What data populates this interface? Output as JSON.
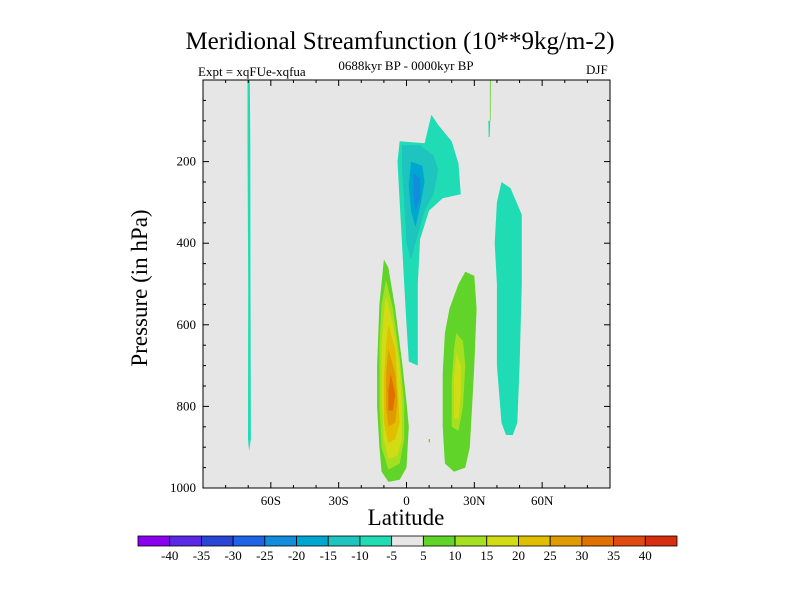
{
  "chart_data": {
    "type": "contour",
    "title": "Meridional Streamfunction (10**9kg/m-2)",
    "subtitle_left": "Expt = xqFUe-xqfua",
    "subtitle_center": "0688kyr BP - 0000kyr BP",
    "subtitle_right": "DJF",
    "xlabel": "Latitude",
    "ylabel": "Pressure (in hPa)",
    "xlim": [
      -90,
      90
    ],
    "ylim": [
      1000,
      0
    ],
    "x_ticks": [
      {
        "value": -60,
        "label": "60S"
      },
      {
        "value": -30,
        "label": "30S"
      },
      {
        "value": 0,
        "label": "0"
      },
      {
        "value": 30,
        "label": "30N"
      },
      {
        "value": 60,
        "label": "60N"
      }
    ],
    "y_ticks": [
      {
        "value": 200,
        "label": "200"
      },
      {
        "value": 400,
        "label": "400"
      },
      {
        "value": 600,
        "label": "600"
      },
      {
        "value": 800,
        "label": "800"
      },
      {
        "value": 1000,
        "label": "1000"
      }
    ],
    "background_color": "#e6e6e6",
    "features": [
      {
        "name": "thin -5 band 70S",
        "level": -5,
        "points": [
          [
            -70.3,
            0
          ],
          [
            -69.3,
            0
          ],
          [
            -69.1,
            150
          ],
          [
            -69.0,
            500
          ],
          [
            -68.8,
            880
          ],
          [
            -69.6,
            910
          ],
          [
            -70.1,
            880
          ],
          [
            -70.0,
            500
          ],
          [
            -70.3,
            150
          ]
        ]
      },
      {
        "name": "thin sliver 37N",
        "level": -5,
        "points": [
          [
            36.2,
            100
          ],
          [
            37.0,
            100
          ],
          [
            36.8,
            140
          ],
          [
            36.3,
            140
          ]
        ]
      },
      {
        "name": "thin sliver 37N top",
        "level": 5,
        "points": [
          [
            36.9,
            0
          ],
          [
            37.3,
            0
          ],
          [
            37.2,
            100
          ],
          [
            36.9,
            100
          ]
        ]
      },
      {
        "name": "negative cell upper",
        "level": -5,
        "points": [
          [
            -3,
            150
          ],
          [
            8,
            155
          ],
          [
            11,
            85
          ],
          [
            14,
            110
          ],
          [
            20,
            150
          ],
          [
            23,
            205
          ],
          [
            24,
            280
          ],
          [
            16,
            290
          ],
          [
            10,
            320
          ],
          [
            6,
            390
          ],
          [
            5,
            500
          ],
          [
            5,
            700
          ],
          [
            1,
            690
          ],
          [
            0,
            600
          ],
          [
            -1,
            500
          ],
          [
            -2,
            400
          ],
          [
            -3,
            300
          ],
          [
            -4,
            200
          ]
        ]
      },
      {
        "name": "neg -10",
        "level": -10,
        "points": [
          [
            -2,
            160
          ],
          [
            6,
            160
          ],
          [
            12,
            185
          ],
          [
            14,
            220
          ],
          [
            12,
            280
          ],
          [
            8,
            320
          ],
          [
            4,
            400
          ],
          [
            2,
            440
          ],
          [
            0,
            400
          ],
          [
            -1,
            300
          ],
          [
            -2,
            220
          ]
        ]
      },
      {
        "name": "neg -15",
        "level": -15,
        "points": [
          [
            2,
            200
          ],
          [
            7,
            210
          ],
          [
            8,
            250
          ],
          [
            6,
            310
          ],
          [
            4,
            360
          ],
          [
            2,
            320
          ],
          [
            1,
            260
          ]
        ]
      },
      {
        "name": "neg -20",
        "level": -20,
        "points": [
          [
            3,
            230
          ],
          [
            6,
            240
          ],
          [
            6,
            290
          ],
          [
            4,
            320
          ],
          [
            3,
            280
          ]
        ]
      },
      {
        "name": "NH -5 ellipse",
        "level": -5,
        "points": [
          [
            42,
            250
          ],
          [
            46,
            265
          ],
          [
            51,
            330
          ],
          [
            51,
            500
          ],
          [
            50,
            700
          ],
          [
            49,
            840
          ],
          [
            47,
            870
          ],
          [
            44,
            870
          ],
          [
            42,
            840
          ],
          [
            40,
            700
          ],
          [
            40,
            500
          ],
          [
            39,
            400
          ],
          [
            40,
            300
          ]
        ]
      },
      {
        "name": "SH positive cell",
        "level": 5,
        "points": [
          [
            -10,
            440
          ],
          [
            -8,
            460
          ],
          [
            -5,
            560
          ],
          [
            -2,
            690
          ],
          [
            0,
            790
          ],
          [
            1,
            850
          ],
          [
            0,
            950
          ],
          [
            -3,
            980
          ],
          [
            -8,
            985
          ],
          [
            -11,
            960
          ],
          [
            -12,
            900
          ],
          [
            -13,
            800
          ],
          [
            -13,
            700
          ],
          [
            -12,
            550
          ]
        ]
      },
      {
        "name": "SH pos 10",
        "level": 10,
        "points": [
          [
            -9,
            490
          ],
          [
            -6,
            560
          ],
          [
            -3,
            680
          ],
          [
            -1,
            790
          ],
          [
            -1,
            880
          ],
          [
            -3,
            940
          ],
          [
            -8,
            955
          ],
          [
            -11,
            900
          ],
          [
            -12,
            800
          ],
          [
            -12,
            650
          ],
          [
            -11,
            550
          ]
        ]
      },
      {
        "name": "SH pos 15",
        "level": 15,
        "points": [
          [
            -9,
            530
          ],
          [
            -6,
            600
          ],
          [
            -3,
            700
          ],
          [
            -2,
            800
          ],
          [
            -2,
            880
          ],
          [
            -4,
            920
          ],
          [
            -8,
            930
          ],
          [
            -10,
            880
          ],
          [
            -11,
            780
          ],
          [
            -11,
            650
          ],
          [
            -10,
            570
          ]
        ]
      },
      {
        "name": "SH pos 20",
        "level": 20,
        "points": [
          [
            -8,
            600
          ],
          [
            -5,
            660
          ],
          [
            -4,
            750
          ],
          [
            -3,
            840
          ],
          [
            -5,
            880
          ],
          [
            -8,
            890
          ],
          [
            -10,
            840
          ],
          [
            -10,
            730
          ],
          [
            -9,
            650
          ]
        ]
      },
      {
        "name": "SH pos 25",
        "level": 25,
        "points": [
          [
            -8,
            660
          ],
          [
            -5,
            720
          ],
          [
            -4,
            790
          ],
          [
            -5,
            840
          ],
          [
            -8,
            850
          ],
          [
            -9,
            800
          ],
          [
            -9,
            720
          ]
        ]
      },
      {
        "name": "SH pos 30",
        "level": 30,
        "points": [
          [
            -7,
            720
          ],
          [
            -5,
            770
          ],
          [
            -6,
            810
          ],
          [
            -8,
            810
          ],
          [
            -8,
            760
          ]
        ]
      },
      {
        "name": "NH positive cell",
        "level": 5,
        "points": [
          [
            26,
            470
          ],
          [
            30,
            480
          ],
          [
            31,
            560
          ],
          [
            30,
            700
          ],
          [
            29,
            800
          ],
          [
            28,
            900
          ],
          [
            26,
            950
          ],
          [
            21,
            960
          ],
          [
            17,
            940
          ],
          [
            16,
            850
          ],
          [
            16,
            720
          ],
          [
            17,
            620
          ],
          [
            19,
            560
          ],
          [
            23,
            500
          ]
        ]
      },
      {
        "name": "NH pos 10",
        "level": 10,
        "points": [
          [
            22,
            620
          ],
          [
            25,
            640
          ],
          [
            26,
            700
          ],
          [
            25,
            800
          ],
          [
            23,
            860
          ],
          [
            20,
            850
          ],
          [
            20,
            740
          ],
          [
            21,
            660
          ]
        ]
      },
      {
        "name": "NH pos 15",
        "level": 15,
        "points": [
          [
            22,
            670
          ],
          [
            24,
            700
          ],
          [
            24,
            770
          ],
          [
            23,
            830
          ],
          [
            21,
            830
          ],
          [
            21,
            730
          ]
        ]
      },
      {
        "name": "tiny dot",
        "level": 5,
        "points": [
          [
            9.8,
            880
          ],
          [
            10.4,
            880
          ],
          [
            10.4,
            888
          ],
          [
            9.8,
            888
          ]
        ]
      }
    ],
    "colorbar": {
      "levels": [
        -40,
        -35,
        -30,
        -25,
        -20,
        -15,
        -10,
        -5,
        5,
        10,
        15,
        20,
        25,
        30,
        35,
        40
      ],
      "labels": [
        "-40",
        "-35",
        "-30",
        "-25",
        "-20",
        "-15",
        "-10",
        "-5",
        "5",
        "10",
        "15",
        "20",
        "25",
        "30",
        "35",
        "40"
      ],
      "colors": [
        "#8c00f0",
        "#5a28e6",
        "#2846d6",
        "#1e64e6",
        "#148cdc",
        "#00a6d2",
        "#1ec4be",
        "#20dcb4",
        "#e6e6e6",
        "#60d428",
        "#a4e020",
        "#d2dc14",
        "#e0be00",
        "#e09b00",
        "#e07000",
        "#e04a10",
        "#d82e10"
      ]
    }
  }
}
